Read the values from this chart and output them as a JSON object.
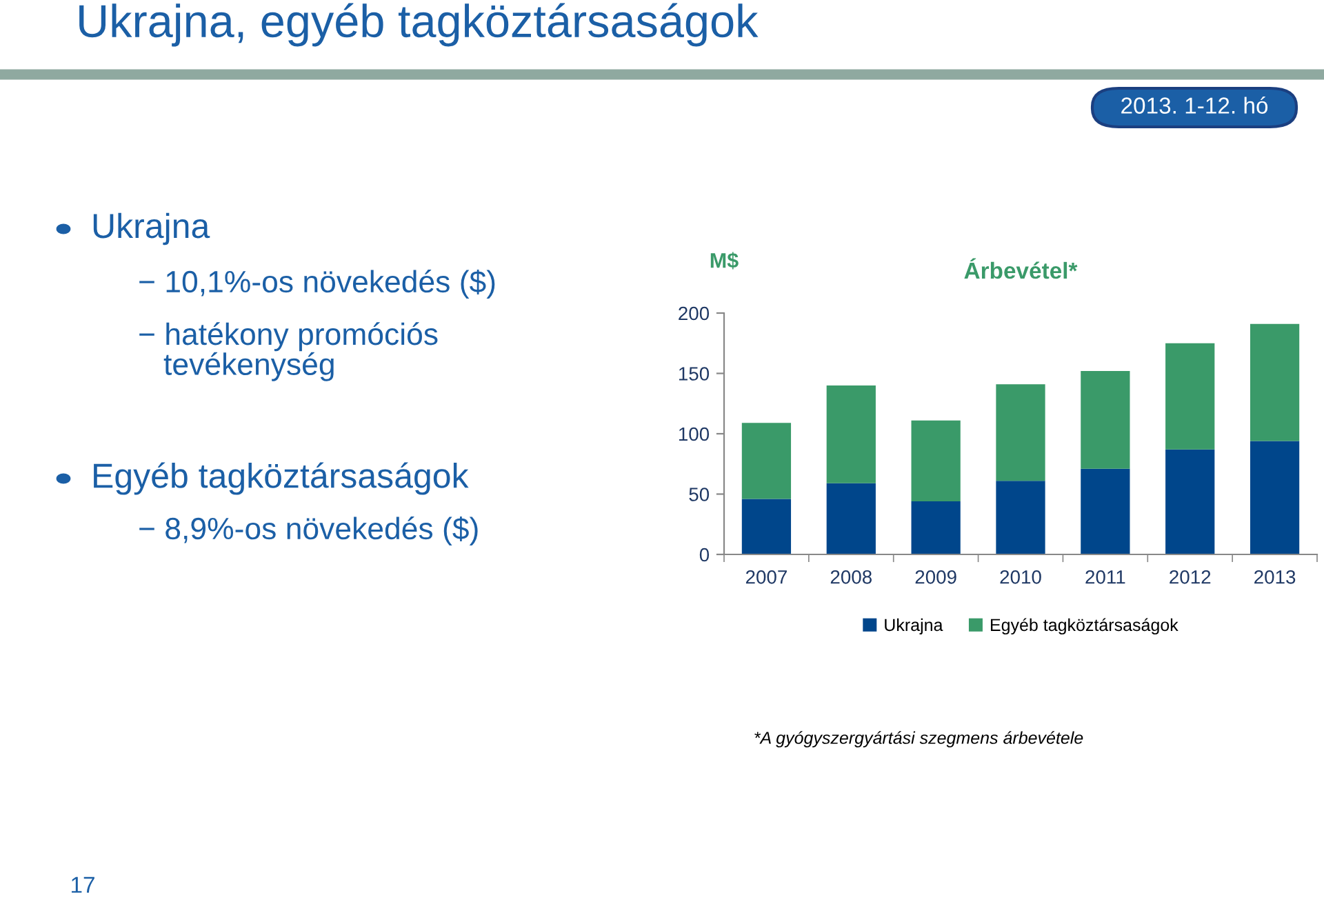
{
  "chart_data": {
    "type": "bar",
    "title": "Ukrajna, egyéb tagköztársaságok",
    "subtitle": "Árbevétel*",
    "ylabel": "M$",
    "categories": [
      "2007",
      "2008",
      "2009",
      "2010",
      "2011",
      "2012",
      "2013"
    ],
    "series": [
      {
        "name": "Ukrajna",
        "color": "#00468b",
        "values": [
          46,
          59,
          44,
          61,
          71,
          87,
          94
        ]
      },
      {
        "name": "Egyéb tagköztársaságok",
        "color": "#3a9a69",
        "values": [
          63,
          81,
          67,
          80,
          81,
          88,
          97
        ]
      }
    ],
    "stacked": true,
    "ylim": [
      0,
      200
    ],
    "yticks": [
      0,
      50,
      100,
      150,
      200
    ],
    "grid": false,
    "legend": "bottom",
    "annotations": [
      "2013. 1-12. hó",
      "Ukrajna",
      "− 10,1%-os növekedés ($)",
      "− hatékony promóciós\n   tevékenység",
      "Egyéb tagköztársaságok",
      "− 8,9%-os növekedés ($)",
      "*A gyógyszergyártási szegmens árbevétele",
      "17"
    ]
  }
}
